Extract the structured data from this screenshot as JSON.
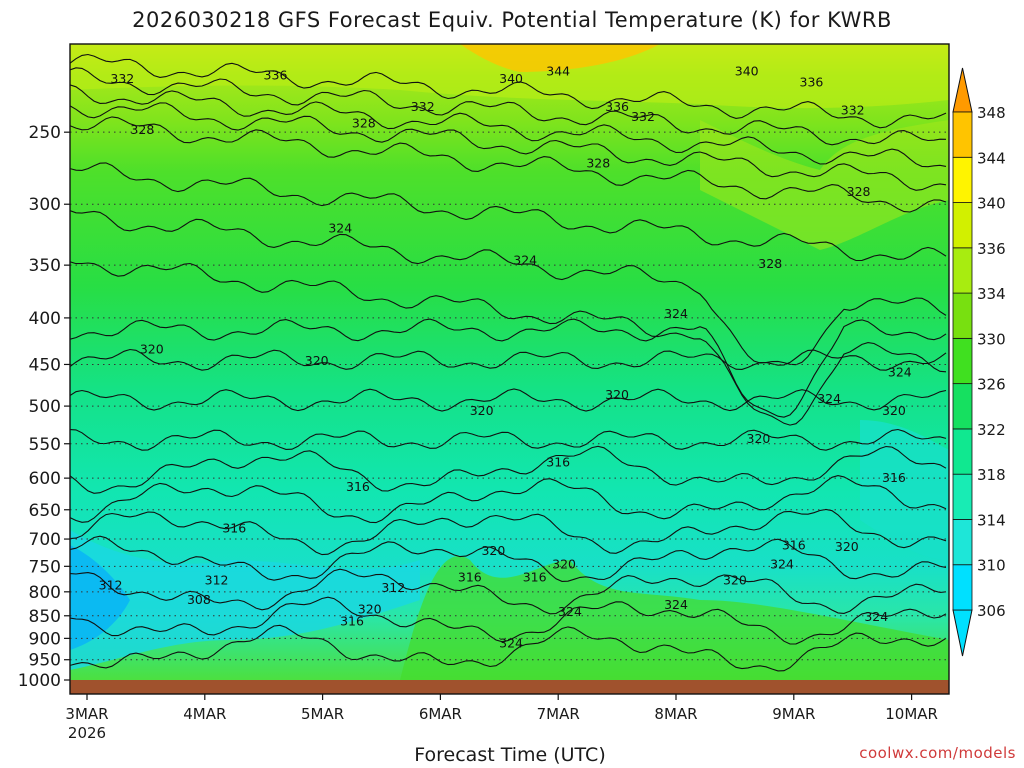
{
  "chart_data": {
    "type": "heatmap",
    "title": "2026030218 GFS Forecast Equiv. Potential Temperature (K) for KWRB",
    "xlabel": "Forecast Time (UTC)",
    "ylabel": "",
    "y_scale": "log-pressure",
    "y_axis_reversed": true,
    "ylim": [
      1000,
      200
    ],
    "y_ticks": [
      "250",
      "300",
      "350",
      "400",
      "450",
      "500",
      "550",
      "600",
      "650",
      "700",
      "750",
      "800",
      "850",
      "900",
      "950",
      "1000"
    ],
    "x_ticks": [
      "3MAR",
      "4MAR",
      "5MAR",
      "6MAR",
      "7MAR",
      "8MAR",
      "9MAR",
      "10MAR"
    ],
    "x_tick_sublabel": "2026",
    "colorbar": {
      "unit": "K",
      "labels": [
        "306",
        "310",
        "314",
        "318",
        "322",
        "326",
        "330",
        "334",
        "336",
        "340",
        "344",
        "348"
      ],
      "colors": [
        "#00e0ff",
        "#1ee6d8",
        "#18ecb4",
        "#10e890",
        "#16e060",
        "#40e020",
        "#78e010",
        "#a8ec10",
        "#d2f000",
        "#fff400",
        "#ffc400",
        "#ff9a00"
      ],
      "extend": "both"
    },
    "contour_labels": [
      {
        "text": "332",
        "time": 0.3,
        "p": 218
      },
      {
        "text": "336",
        "time": 1.6,
        "p": 216
      },
      {
        "text": "340",
        "time": 3.6,
        "p": 218
      },
      {
        "text": "344",
        "time": 4.0,
        "p": 214
      },
      {
        "text": "340",
        "time": 5.6,
        "p": 214
      },
      {
        "text": "336",
        "time": 6.15,
        "p": 220
      },
      {
        "text": "332",
        "time": 2.85,
        "p": 234
      },
      {
        "text": "336",
        "time": 4.5,
        "p": 234
      },
      {
        "text": "332",
        "time": 4.72,
        "p": 240
      },
      {
        "text": "332",
        "time": 6.5,
        "p": 236
      },
      {
        "text": "328",
        "time": 0.47,
        "p": 248
      },
      {
        "text": "328",
        "time": 2.35,
        "p": 244
      },
      {
        "text": "328",
        "time": 4.34,
        "p": 270
      },
      {
        "text": "328",
        "time": 6.55,
        "p": 290
      },
      {
        "text": "324",
        "time": 2.15,
        "p": 318
      },
      {
        "text": "324",
        "time": 3.72,
        "p": 345
      },
      {
        "text": "328",
        "time": 5.8,
        "p": 348
      },
      {
        "text": "324",
        "time": 5.0,
        "p": 395
      },
      {
        "text": "320",
        "time": 0.55,
        "p": 432
      },
      {
        "text": "320",
        "time": 1.95,
        "p": 445
      },
      {
        "text": "324",
        "time": 6.9,
        "p": 458
      },
      {
        "text": "320",
        "time": 3.35,
        "p": 505
      },
      {
        "text": "320",
        "time": 4.5,
        "p": 485
      },
      {
        "text": "324",
        "time": 6.3,
        "p": 490
      },
      {
        "text": "320",
        "time": 6.85,
        "p": 505
      },
      {
        "text": "320",
        "time": 5.7,
        "p": 542
      },
      {
        "text": "316",
        "time": 4.0,
        "p": 575
      },
      {
        "text": "316",
        "time": 2.3,
        "p": 612
      },
      {
        "text": "316",
        "time": 6.85,
        "p": 598
      },
      {
        "text": "316",
        "time": 1.25,
        "p": 680
      },
      {
        "text": "320",
        "time": 3.45,
        "p": 720
      },
      {
        "text": "316",
        "time": 6.0,
        "p": 710
      },
      {
        "text": "320",
        "time": 6.45,
        "p": 712
      },
      {
        "text": "320",
        "time": 4.05,
        "p": 745
      },
      {
        "text": "316",
        "time": 3.25,
        "p": 770
      },
      {
        "text": "316",
        "time": 3.8,
        "p": 770
      },
      {
        "text": "324",
        "time": 5.9,
        "p": 745
      },
      {
        "text": "320",
        "time": 5.5,
        "p": 775
      },
      {
        "text": "312",
        "time": 0.2,
        "p": 785
      },
      {
        "text": "312",
        "time": 1.1,
        "p": 775
      },
      {
        "text": "308",
        "time": 0.95,
        "p": 815
      },
      {
        "text": "312",
        "time": 2.6,
        "p": 790
      },
      {
        "text": "320",
        "time": 2.4,
        "p": 835
      },
      {
        "text": "316",
        "time": 2.25,
        "p": 860
      },
      {
        "text": "324",
        "time": 4.1,
        "p": 840
      },
      {
        "text": "324",
        "time": 5.0,
        "p": 825
      },
      {
        "text": "324",
        "time": 6.7,
        "p": 850
      },
      {
        "text": "324",
        "time": 3.6,
        "p": 910
      }
    ]
  },
  "credit": "coolwx.com/models"
}
